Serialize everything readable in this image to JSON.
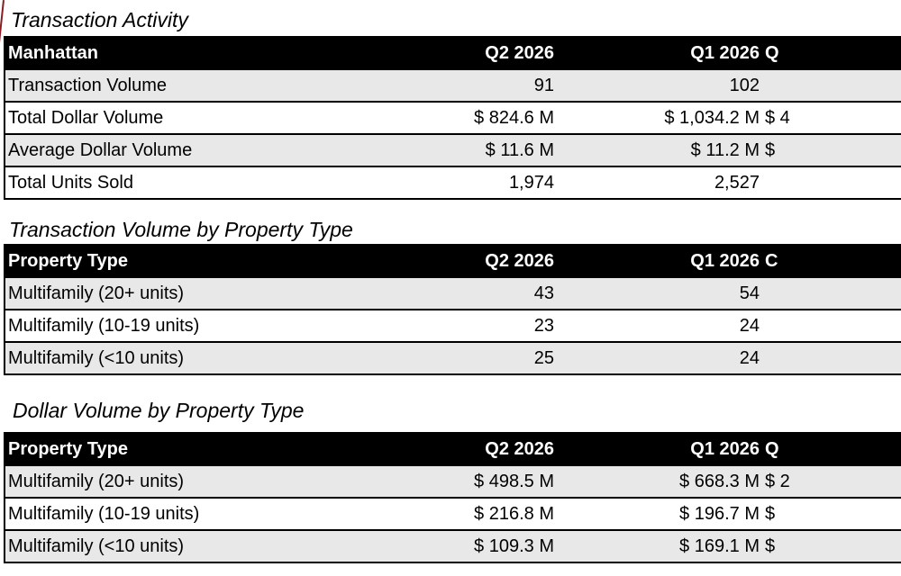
{
  "sections": [
    {
      "title": "Transaction Activity",
      "headers": [
        "Manhattan",
        "Q2 2026",
        "Q1 2026",
        "Q"
      ],
      "rows": [
        {
          "label": "Transaction Volume",
          "q2": "91",
          "q1": "102",
          "q0": ""
        },
        {
          "label": "Total Dollar Volume",
          "q2": "$ 824.6 M",
          "q1": "$ 1,034.2 M",
          "q0": "$ 4"
        },
        {
          "label": "Average Dollar Volume",
          "q2": "$ 11.6 M",
          "q1": "$ 11.2 M",
          "q0": "$"
        },
        {
          "label": "Total Units Sold",
          "q2": "1,974",
          "q1": "2,527",
          "q0": ""
        }
      ]
    },
    {
      "title": "Transaction Volume by Property Type",
      "headers": [
        "Property Type",
        "Q2 2026",
        "Q1 2026",
        "C"
      ],
      "rows": [
        {
          "label": "Multifamily (20+ units)",
          "q2": "43",
          "q1": "54",
          "q0": ""
        },
        {
          "label": "Multifamily (10-19 units)",
          "q2": "23",
          "q1": "24",
          "q0": ""
        },
        {
          "label": "Multifamily (<10 units)",
          "q2": "25",
          "q1": "24",
          "q0": ""
        }
      ]
    },
    {
      "title": "Dollar Volume by Property Type",
      "headers": [
        "Property Type",
        "Q2 2026",
        "Q1 2026",
        "Q"
      ],
      "rows": [
        {
          "label": "Multifamily (20+ units)",
          "q2": "$ 498.5 M",
          "q1": "$ 668.3 M",
          "q0": "$ 2"
        },
        {
          "label": "Multifamily (10-19 units)",
          "q2": "$ 216.8 M",
          "q1": "$ 196.7 M",
          "q0": "$"
        },
        {
          "label": "Multifamily (<10 units)",
          "q2": "$ 109.3 M",
          "q1": "$ 169.1 M",
          "q0": "$"
        }
      ]
    }
  ]
}
